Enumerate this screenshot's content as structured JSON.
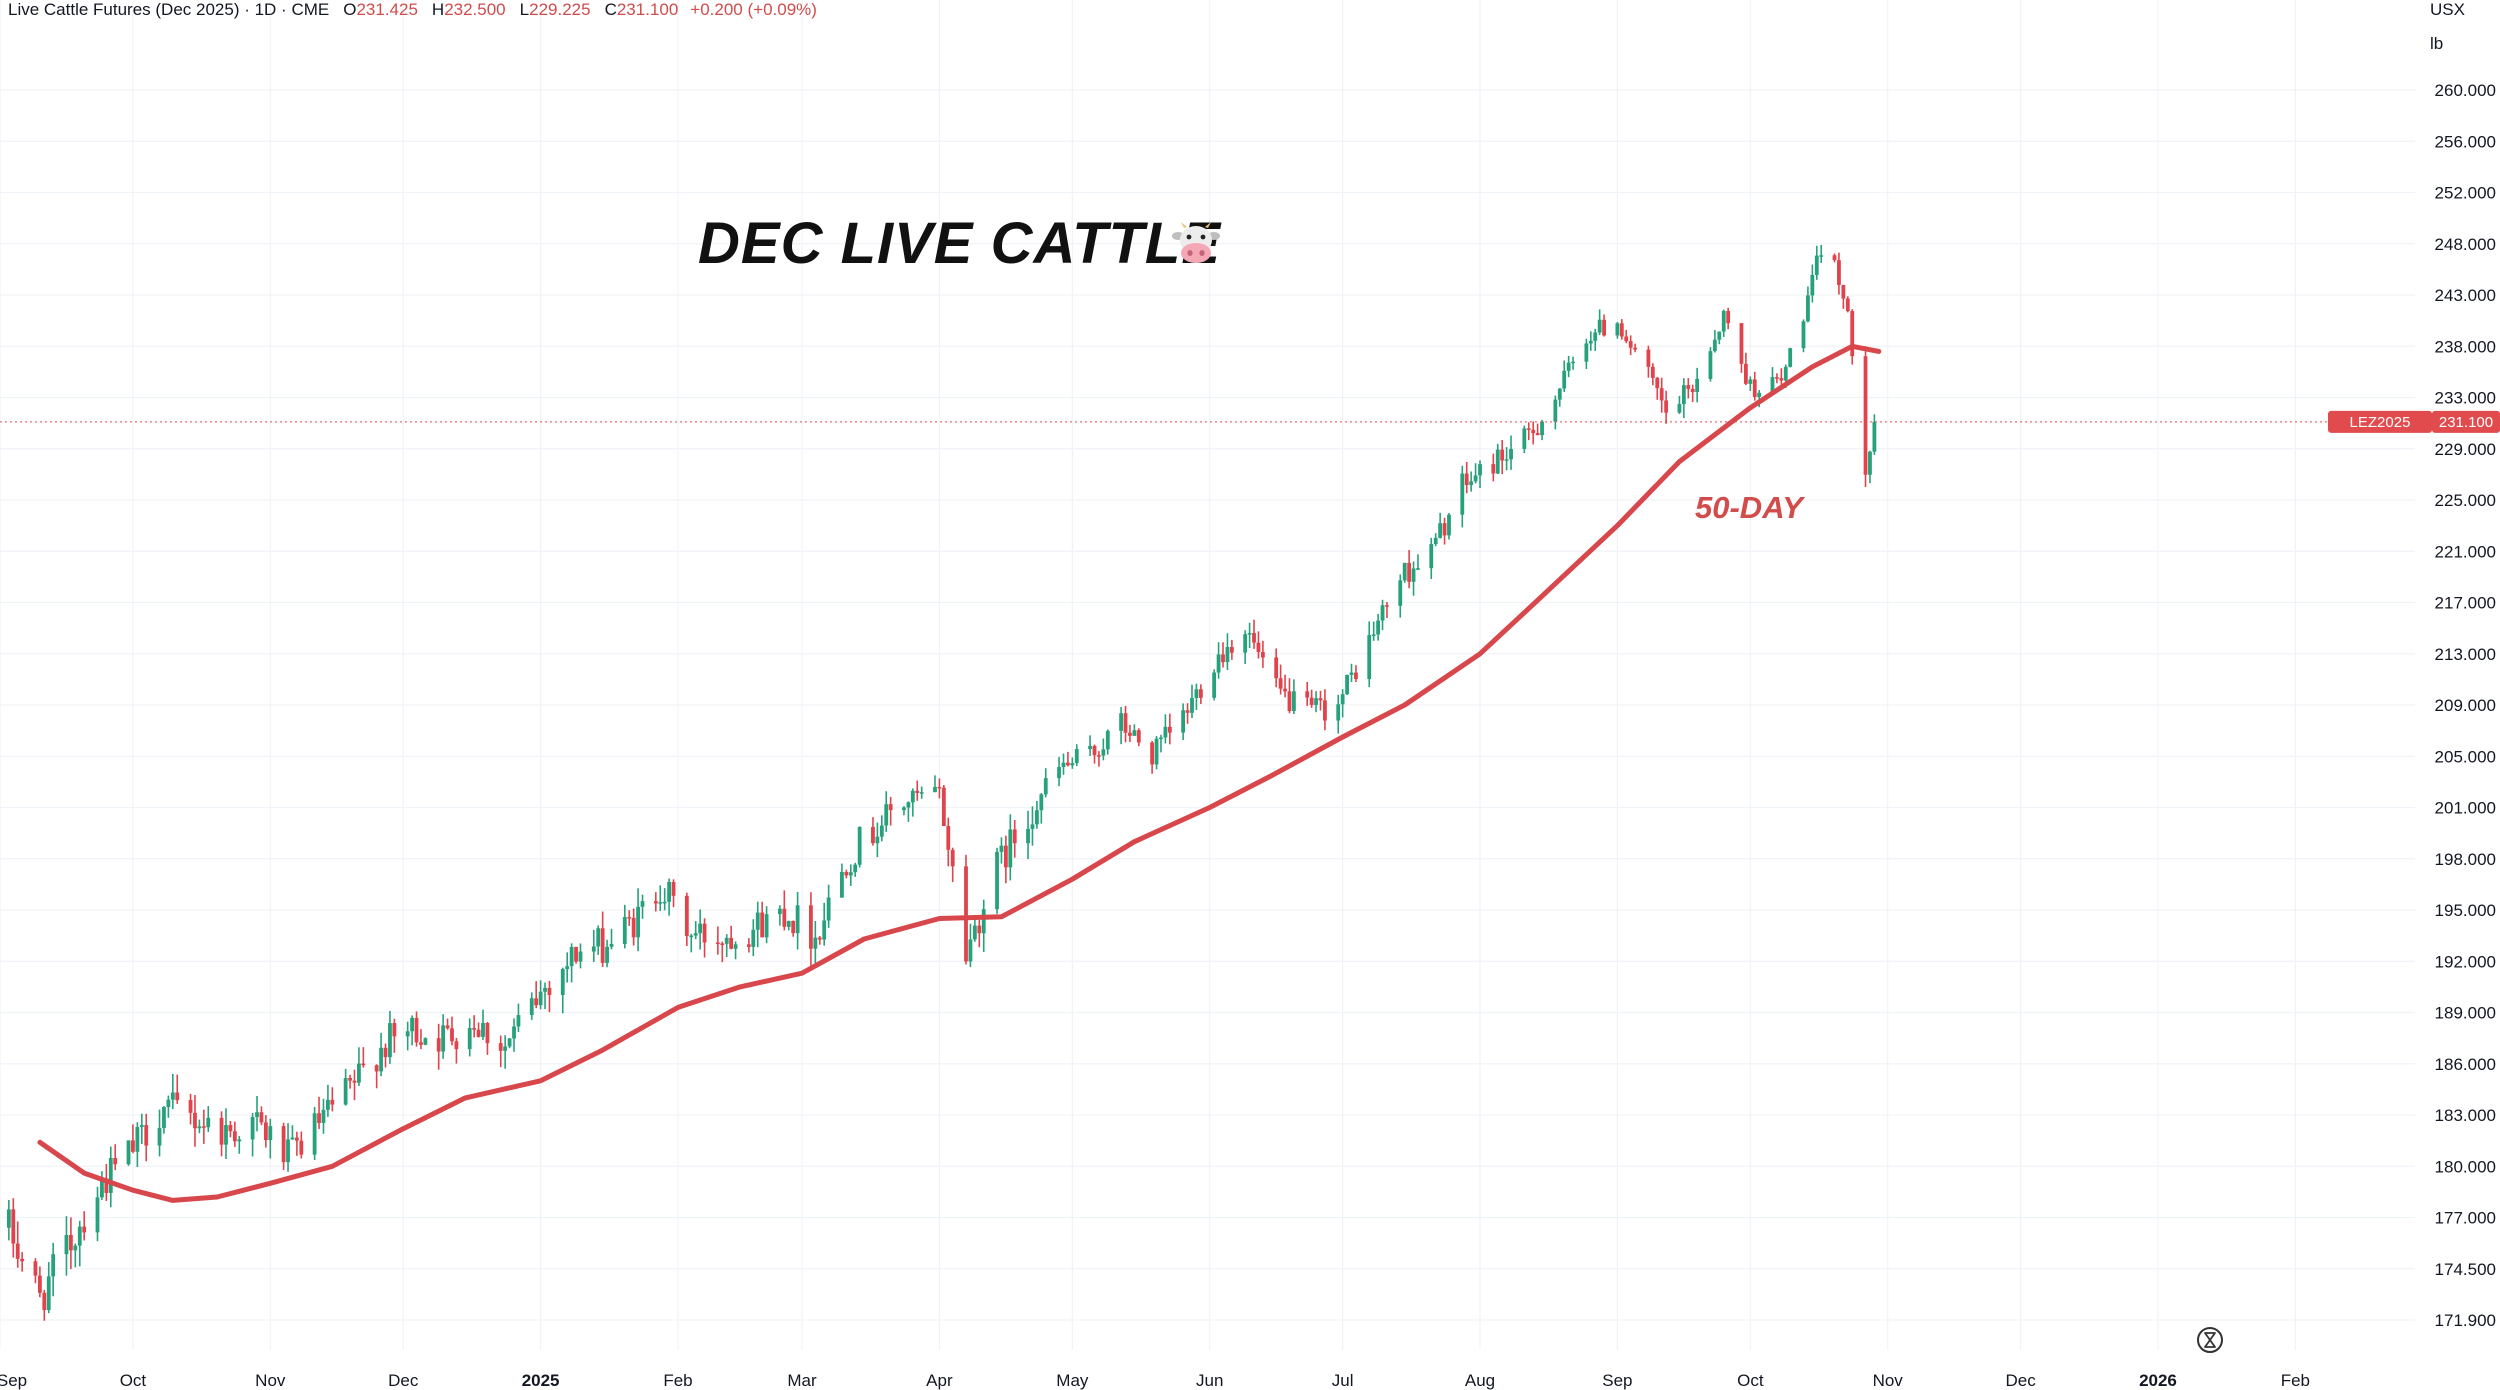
{
  "header": {
    "symbol": "Live Cattle Futures (Dec 2025) · 1D · CME",
    "open_label": "O",
    "open": "231.425",
    "high_label": "H",
    "high": "232.500",
    "low_label": "L",
    "low": "229.225",
    "close_label": "C",
    "close": "231.100",
    "change": "+0.200 (+0.09%)"
  },
  "axis_units": {
    "currency": "USX",
    "unit": "lb"
  },
  "annotations": {
    "title": "DEC LIVE CATTLE",
    "title_icon": "cow-face-icon",
    "ma_label": "50-DAY"
  },
  "price_tag": {
    "ticker": "LEZ2025",
    "price": "231.100"
  },
  "colors": {
    "up": "#26a17b",
    "down": "#e0434b",
    "ma": "#d7474c",
    "price_tag": "#e24b4e"
  },
  "chart_data": {
    "type": "candlestick",
    "y_ticks": [
      "260.000",
      "256.000",
      "252.000",
      "248.000",
      "243.000",
      "238.000",
      "233.000",
      "229.000",
      "225.000",
      "221.000",
      "217.000",
      "213.000",
      "209.000",
      "205.000",
      "201.000",
      "198.000",
      "195.000",
      "192.000",
      "189.000",
      "186.000",
      "183.000",
      "180.000",
      "177.000",
      "174.500",
      "171.900"
    ],
    "x_ticks": [
      "Sep",
      "Oct",
      "Nov",
      "Dec",
      "2025",
      "Feb",
      "Mar",
      "Apr",
      "May",
      "Jun",
      "Jul",
      "Aug",
      "Sep",
      "Oct",
      "Nov",
      "Dec",
      "2026",
      "Feb"
    ],
    "x_range": [
      "2024-09-01",
      "2026-02-28"
    ],
    "last_price": 231.1,
    "price_path": [
      [
        "2024-09-03",
        176.5
      ],
      [
        "2024-09-10",
        173.0
      ],
      [
        "2024-09-17",
        175.8
      ],
      [
        "2024-09-24",
        179.0
      ],
      [
        "2024-10-01",
        181.0
      ],
      [
        "2024-10-08",
        183.5
      ],
      [
        "2024-10-15",
        182.8
      ],
      [
        "2024-10-22",
        182.0
      ],
      [
        "2024-10-29",
        182.5
      ],
      [
        "2024-11-05",
        180.5
      ],
      [
        "2024-11-12",
        182.5
      ],
      [
        "2024-11-19",
        184.5
      ],
      [
        "2024-11-26",
        187.0
      ],
      [
        "2024-12-03",
        188.0
      ],
      [
        "2024-12-10",
        187.5
      ],
      [
        "2024-12-17",
        188.5
      ],
      [
        "2024-12-24",
        187.0
      ],
      [
        "2025-01-02",
        190.5
      ],
      [
        "2025-01-09",
        192.5
      ],
      [
        "2025-01-16",
        193.0
      ],
      [
        "2025-01-23",
        194.5
      ],
      [
        "2025-01-28",
        196.5
      ],
      [
        "2025-02-04",
        193.5
      ],
      [
        "2025-02-11",
        193.5
      ],
      [
        "2025-02-18",
        194.0
      ],
      [
        "2025-02-25",
        195.0
      ],
      [
        "2025-03-04",
        193.5
      ],
      [
        "2025-03-11",
        198.0
      ],
      [
        "2025-03-18",
        200.0
      ],
      [
        "2025-03-25",
        201.5
      ],
      [
        "2025-04-01",
        202.0
      ],
      [
        "2025-04-07",
        192.5
      ],
      [
        "2025-04-14",
        197.5
      ],
      [
        "2025-04-21",
        200.5
      ],
      [
        "2025-04-28",
        204.0
      ],
      [
        "2025-05-05",
        205.0
      ],
      [
        "2025-05-12",
        207.5
      ],
      [
        "2025-05-19",
        205.0
      ],
      [
        "2025-05-26",
        208.0
      ],
      [
        "2025-06-02",
        212.5
      ],
      [
        "2025-06-09",
        215.0
      ],
      [
        "2025-06-16",
        210.0
      ],
      [
        "2025-06-23",
        208.5
      ],
      [
        "2025-06-30",
        209.0
      ],
      [
        "2025-07-07",
        214.0
      ],
      [
        "2025-07-14",
        219.0
      ],
      [
        "2025-07-21",
        221.0
      ],
      [
        "2025-07-28",
        226.0
      ],
      [
        "2025-08-04",
        228.0
      ],
      [
        "2025-08-11",
        229.5
      ],
      [
        "2025-08-18",
        233.0
      ],
      [
        "2025-08-25",
        239.0
      ],
      [
        "2025-09-01",
        240.5
      ],
      [
        "2025-09-08",
        235.0
      ],
      [
        "2025-09-12",
        231.5
      ],
      [
        "2025-09-18",
        234.0
      ],
      [
        "2025-09-25",
        241.0
      ],
      [
        "2025-10-01",
        234.0
      ],
      [
        "2025-10-08",
        234.5
      ],
      [
        "2025-10-15",
        244.0
      ],
      [
        "2025-10-17",
        247.5
      ],
      [
        "2025-10-21",
        245.0
      ],
      [
        "2025-10-24",
        238.0
      ],
      [
        "2025-10-27",
        228.0
      ],
      [
        "2025-10-29",
        231.1
      ]
    ],
    "ma50": {
      "name": "50-DAY",
      "points": [
        [
          "2024-09-10",
          181.4
        ],
        [
          "2024-09-20",
          179.6
        ],
        [
          "2024-10-01",
          178.6
        ],
        [
          "2024-10-10",
          178.0
        ],
        [
          "2024-10-20",
          178.2
        ],
        [
          "2024-11-01",
          179.0
        ],
        [
          "2024-11-15",
          180.0
        ],
        [
          "2024-12-01",
          182.2
        ],
        [
          "2024-12-15",
          184.0
        ],
        [
          "2025-01-01",
          185.0
        ],
        [
          "2025-01-15",
          186.8
        ],
        [
          "2025-02-01",
          189.3
        ],
        [
          "2025-02-15",
          190.5
        ],
        [
          "2025-03-01",
          191.3
        ],
        [
          "2025-03-15",
          193.3
        ],
        [
          "2025-04-01",
          194.5
        ],
        [
          "2025-04-15",
          194.6
        ],
        [
          "2025-05-01",
          196.8
        ],
        [
          "2025-05-15",
          199.0
        ],
        [
          "2025-06-01",
          201.0
        ],
        [
          "2025-06-15",
          203.5
        ],
        [
          "2025-07-01",
          206.5
        ],
        [
          "2025-07-15",
          209.0
        ],
        [
          "2025-08-01",
          213.0
        ],
        [
          "2025-08-15",
          217.5
        ],
        [
          "2025-09-01",
          223.0
        ],
        [
          "2025-09-15",
          228.0
        ],
        [
          "2025-10-01",
          232.2
        ],
        [
          "2025-10-15",
          236.0
        ],
        [
          "2025-10-24",
          238.0
        ],
        [
          "2025-10-30",
          237.5
        ]
      ]
    }
  }
}
